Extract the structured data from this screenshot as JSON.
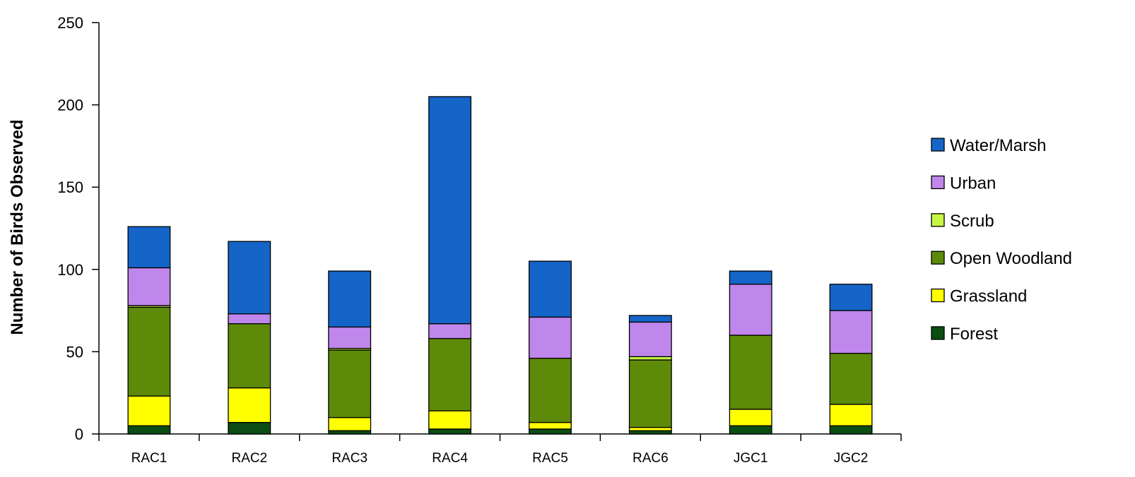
{
  "chart_data": {
    "type": "bar",
    "stacked": true,
    "title": "",
    "xlabel": "",
    "ylabel": "Number of Birds Observed",
    "ylim": [
      0,
      250
    ],
    "yticks": [
      0,
      50,
      100,
      150,
      200,
      250
    ],
    "categories": [
      "RAC1",
      "RAC2",
      "RAC3",
      "RAC4",
      "RAC5",
      "RAC6",
      "JGC1",
      "JGC2"
    ],
    "series": [
      {
        "name": "Forest",
        "color": "#0b4d12",
        "values": [
          5,
          7,
          2,
          3,
          3,
          2,
          5,
          5
        ]
      },
      {
        "name": "Grassland",
        "color": "#ffff00",
        "values": [
          18,
          21,
          8,
          11,
          4,
          2,
          10,
          13
        ]
      },
      {
        "name": "Open Woodland",
        "color": "#5e8a0a",
        "values": [
          54,
          39,
          41,
          44,
          39,
          41,
          45,
          31
        ]
      },
      {
        "name": "Scrub",
        "color": "#c6f542",
        "values": [
          1,
          0,
          1,
          0,
          0,
          2,
          0,
          0
        ]
      },
      {
        "name": "Urban",
        "color": "#bf86ec",
        "values": [
          23,
          6,
          13,
          9,
          25,
          21,
          31,
          26
        ]
      },
      {
        "name": "Water/Marsh",
        "color": "#1565c8",
        "values": [
          25,
          44,
          34,
          138,
          34,
          4,
          8,
          16
        ]
      }
    ],
    "legend_position": "right",
    "legend_order": [
      "Water/Marsh",
      "Urban",
      "Scrub",
      "Open Woodland",
      "Grassland",
      "Forest"
    ],
    "grid": false
  }
}
